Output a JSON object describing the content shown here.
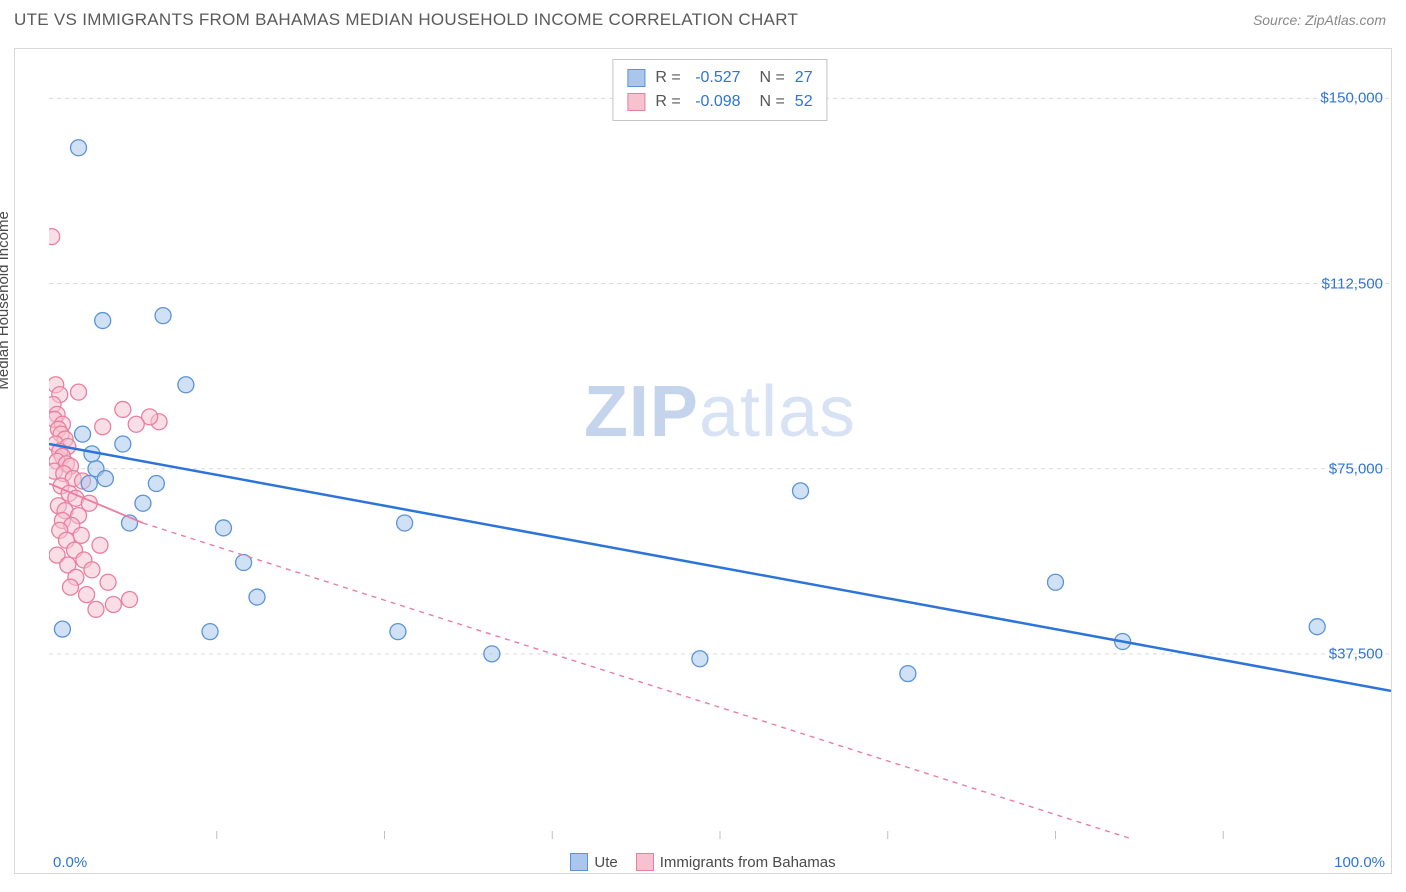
{
  "header": {
    "title": "UTE VS IMMIGRANTS FROM BAHAMAS MEDIAN HOUSEHOLD INCOME CORRELATION CHART",
    "source": "Source: ZipAtlas.com"
  },
  "watermark": {
    "bold": "ZIP",
    "light": "atlas"
  },
  "chart": {
    "type": "scatter",
    "y_axis_label": "Median Household Income",
    "background_color": "#ffffff",
    "grid_color": "#d9d9d9",
    "border_color": "#d8d8d8",
    "xlim": [
      0,
      100
    ],
    "ylim": [
      0,
      160000
    ],
    "x_ticks_minor": [
      12.5,
      25,
      37.5,
      50,
      62.5,
      75,
      87.5
    ],
    "x_tick_labels": {
      "min": "0.0%",
      "max": "100.0%"
    },
    "y_grid": [
      {
        "v": 37500,
        "label": "$37,500"
      },
      {
        "v": 75000,
        "label": "$75,000"
      },
      {
        "v": 112500,
        "label": "$112,500"
      },
      {
        "v": 150000,
        "label": "$150,000"
      }
    ],
    "marker_radius": 8,
    "marker_opacity": 0.55,
    "series": [
      {
        "name": "Ute",
        "fill": "#a9c6ec",
        "stroke": "#5b93d8",
        "line_color": "#2d74da",
        "line_width": 2.5,
        "line_dash": "none",
        "R": "-0.527",
        "N": "27",
        "trend": {
          "x1": 0,
          "y1": 80000,
          "x2": 100,
          "y2": 30000
        },
        "points": [
          [
            2.2,
            140000
          ],
          [
            4.0,
            105000
          ],
          [
            8.5,
            106000
          ],
          [
            3.0,
            72000
          ],
          [
            3.5,
            75000
          ],
          [
            4.2,
            73000
          ],
          [
            3.2,
            78000
          ],
          [
            10.2,
            92000
          ],
          [
            8.0,
            72000
          ],
          [
            6.0,
            64000
          ],
          [
            13.0,
            63000
          ],
          [
            14.5,
            56000
          ],
          [
            15.5,
            49000
          ],
          [
            12.0,
            42000
          ],
          [
            1.0,
            42500
          ],
          [
            26.5,
            64000
          ],
          [
            26.0,
            42000
          ],
          [
            33.0,
            37500
          ],
          [
            48.5,
            36500
          ],
          [
            56.0,
            70500
          ],
          [
            64.0,
            33500
          ],
          [
            75.0,
            52000
          ],
          [
            80.0,
            40000
          ],
          [
            94.5,
            43000
          ],
          [
            5.5,
            80000
          ],
          [
            7.0,
            68000
          ],
          [
            2.5,
            82000
          ]
        ]
      },
      {
        "name": "Immigrants from Bahamas",
        "fill": "#f6c2cf",
        "stroke": "#e97fa0",
        "line_color": "#e97fa0",
        "line_width": 1.4,
        "line_dash": "5,5",
        "R": "-0.098",
        "N": "52",
        "trend_solid": {
          "x1": 0,
          "y1": 72000,
          "x2": 7,
          "y2": 64000
        },
        "trend": {
          "x1": 7,
          "y1": 64000,
          "x2": 83,
          "y2": -2000
        },
        "points": [
          [
            0.2,
            122000
          ],
          [
            0.5,
            92000
          ],
          [
            0.8,
            90000
          ],
          [
            0.3,
            88000
          ],
          [
            0.6,
            86000
          ],
          [
            0.4,
            85000
          ],
          [
            1.0,
            84000
          ],
          [
            0.7,
            83000
          ],
          [
            0.9,
            82000
          ],
          [
            1.2,
            81000
          ],
          [
            0.5,
            80000
          ],
          [
            1.4,
            79500
          ],
          [
            0.8,
            78500
          ],
          [
            1.0,
            77500
          ],
          [
            0.6,
            76500
          ],
          [
            1.3,
            76000
          ],
          [
            1.6,
            75500
          ],
          [
            0.4,
            74500
          ],
          [
            1.1,
            74000
          ],
          [
            1.8,
            73000
          ],
          [
            2.5,
            72500
          ],
          [
            0.9,
            71500
          ],
          [
            1.5,
            70000
          ],
          [
            2.0,
            69000
          ],
          [
            3.0,
            68000
          ],
          [
            0.7,
            67500
          ],
          [
            1.2,
            66500
          ],
          [
            2.2,
            65500
          ],
          [
            1.0,
            64500
          ],
          [
            1.7,
            63500
          ],
          [
            0.8,
            62500
          ],
          [
            2.4,
            61500
          ],
          [
            1.3,
            60500
          ],
          [
            3.8,
            59500
          ],
          [
            1.9,
            58500
          ],
          [
            0.6,
            57500
          ],
          [
            2.6,
            56500
          ],
          [
            1.4,
            55500
          ],
          [
            3.2,
            54500
          ],
          [
            2.0,
            53000
          ],
          [
            4.4,
            52000
          ],
          [
            1.6,
            51000
          ],
          [
            2.8,
            49500
          ],
          [
            6.0,
            48500
          ],
          [
            4.8,
            47500
          ],
          [
            3.5,
            46500
          ],
          [
            8.2,
            84500
          ],
          [
            7.5,
            85500
          ],
          [
            6.5,
            84000
          ],
          [
            2.2,
            90500
          ],
          [
            4.0,
            83500
          ],
          [
            5.5,
            87000
          ]
        ]
      }
    ],
    "bottom_legend": [
      {
        "label": "Ute",
        "fill": "#a9c6ec",
        "stroke": "#5b93d8"
      },
      {
        "label": "Immigrants from Bahamas",
        "fill": "#f6c2cf",
        "stroke": "#e97fa0"
      }
    ]
  }
}
